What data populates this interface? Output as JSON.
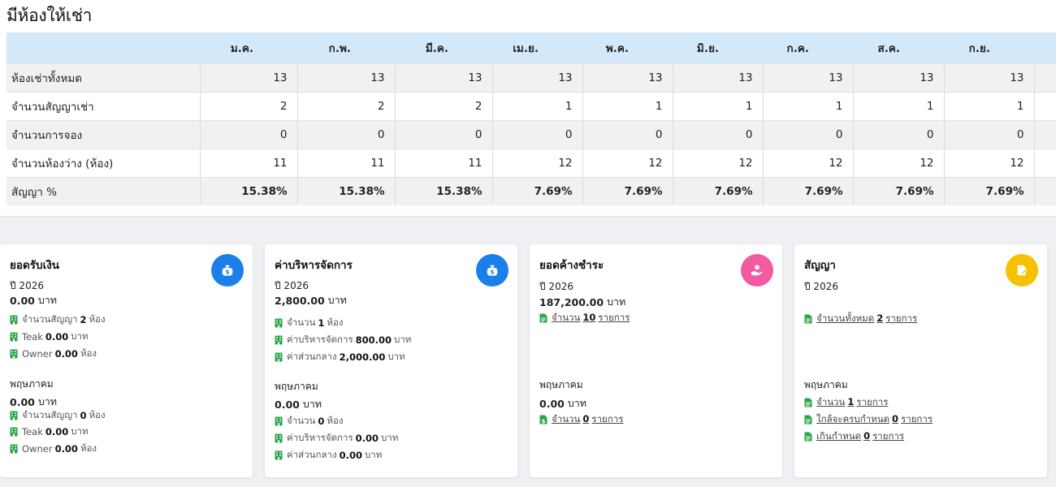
{
  "page_title": "มีห้องให้เช่า",
  "table": {
    "months": [
      "ม.ค.",
      "ก.พ.",
      "มี.ค.",
      "เม.ย.",
      "พ.ค.",
      "มิ.ย.",
      "ก.ค.",
      "ส.ค.",
      "ก.ย."
    ],
    "rows": [
      {
        "label": "ห้องเช่าทั้งหมด",
        "values": [
          "13",
          "13",
          "13",
          "13",
          "13",
          "13",
          "13",
          "13",
          "13"
        ]
      },
      {
        "label": "จำนวนสัญญาเช่า",
        "values": [
          "2",
          "2",
          "2",
          "1",
          "1",
          "1",
          "1",
          "1",
          "1"
        ]
      },
      {
        "label": "จำนวนการจอง",
        "values": [
          "0",
          "0",
          "0",
          "0",
          "0",
          "0",
          "0",
          "0",
          "0"
        ]
      },
      {
        "label": "จำนวนห้องว่าง (ห้อง)",
        "values": [
          "11",
          "11",
          "11",
          "12",
          "12",
          "12",
          "12",
          "12",
          "12"
        ]
      },
      {
        "label": "สัญญา %",
        "values": [
          "15.38%",
          "15.38%",
          "15.38%",
          "7.69%",
          "7.69%",
          "7.69%",
          "7.69%",
          "7.69%",
          "7.69%"
        ]
      }
    ]
  },
  "cards": {
    "income": {
      "title": "ยอดรับเงิน",
      "icon": "money-bag-icon",
      "icon_color": "#1a7fe8",
      "year": "ปี 2026",
      "amount": "0.00",
      "unit": "บาท",
      "l1_pre": "จำนวนสัญญา",
      "l1_val": "2",
      "l1_post": "ห้อง",
      "l2_pre": "Teak",
      "l2_val": "0.00",
      "l2_post": "บาท",
      "l3_pre": "Owner",
      "l3_val": "0.00",
      "l3_post": "ห้อง",
      "month": "พฤษภาคม",
      "m_amount": "0.00",
      "m_unit": "บาท",
      "m1_pre": "จำนวนสัญญา",
      "m1_val": "0",
      "m1_post": "ห้อง",
      "m2_pre": "Teak",
      "m2_val": "0.00",
      "m2_post": "บาท",
      "m3_pre": "Owner",
      "m3_val": "0.00",
      "m3_post": "ห้อง"
    },
    "mgmt": {
      "title": "ค่าบริหารจัดการ",
      "icon": "money-bag-icon",
      "icon_color": "#1a7fe8",
      "year": "ปี 2026",
      "amount": "2,800.00",
      "unit": "บาท",
      "l1_pre": "จำนวน",
      "l1_val": "1",
      "l1_post": "ห้อง",
      "l2_pre": "ค่าบริหารจัดการ",
      "l2_val": "800.00",
      "l2_post": "บาท",
      "l3_pre": "ค่าส่วนกลาง",
      "l3_val": "2,000.00",
      "l3_post": "บาท",
      "month": "พฤษภาคม",
      "m_amount": "0.00",
      "m_unit": "บาท",
      "m1_pre": "จำนวน",
      "m1_val": "0",
      "m1_post": "ห้อง",
      "m2_pre": "ค่าบริหารจัดการ",
      "m2_val": "0.00",
      "m2_post": "บาท",
      "m3_pre": "ค่าส่วนกลาง",
      "m3_val": "0.00",
      "m3_post": "บาท"
    },
    "outstanding": {
      "title": "ยอดค้างชำระ",
      "icon": "hand-coin-icon",
      "icon_color": "#f25ba0",
      "year": "ปี 2026",
      "amount": "187,200.00",
      "unit": "บาท",
      "l1_pre": "จำนวน",
      "l1_val": "10",
      "l1_post": "รายการ",
      "month": "พฤษภาคม",
      "m_amount": "0.00",
      "m_unit": "บาท",
      "m1_pre": "จำนวน",
      "m1_val": "0",
      "m1_post": "รายการ"
    },
    "contract": {
      "title": "สัญญา",
      "icon": "signature-icon",
      "icon_color": "#f5c100",
      "year": "ปี 2026",
      "l1_pre": "จำนวนทั้งหมด",
      "l1_val": "2",
      "l1_post": "รายการ",
      "month": "พฤษภาคม",
      "m1_pre": "จำนวน",
      "m1_val": "1",
      "m1_post": "รายการ",
      "m2_pre": "ใกล้จะครบกำหนด",
      "m2_val": "0",
      "m2_post": "รายการ",
      "m3_pre": "เกินกำหนด",
      "m3_val": "0",
      "m3_post": "รายการ"
    }
  },
  "colors": {
    "accent_green": "#28a745",
    "header_blue": "#d3e9f9"
  }
}
